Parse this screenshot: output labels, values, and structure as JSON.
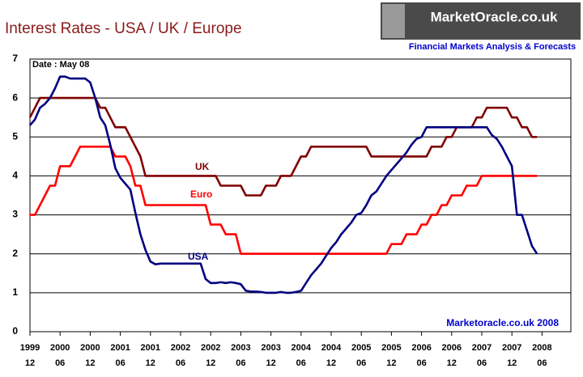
{
  "chart_data": {
    "type": "line",
    "title": "Interest Rates - USA / UK / Europe",
    "logo": {
      "name": "MarketOracle.co.uk",
      "tagline": "Financial Markets Analysis & Forecasts"
    },
    "annotations": {
      "date": "Date : May 08",
      "credit": "Marketoracle.co.uk 2008",
      "uk": "UK",
      "euro": "Euro",
      "usa": "USA"
    },
    "categories": [
      [
        "1999",
        "12"
      ],
      null,
      null,
      null,
      null,
      null,
      [
        "2000",
        "06"
      ],
      null,
      null,
      null,
      null,
      null,
      [
        "2000",
        "12"
      ],
      null,
      null,
      null,
      null,
      null,
      [
        "2001",
        "06"
      ],
      null,
      null,
      null,
      null,
      null,
      [
        "2001",
        "12"
      ],
      null,
      null,
      null,
      null,
      null,
      [
        "2002",
        "06"
      ],
      null,
      null,
      null,
      null,
      null,
      [
        "2002",
        "12"
      ],
      null,
      null,
      null,
      null,
      null,
      [
        "2003",
        "06"
      ],
      null,
      null,
      null,
      null,
      null,
      [
        "2003",
        "12"
      ],
      null,
      null,
      null,
      null,
      null,
      [
        "2004",
        "06"
      ],
      null,
      null,
      null,
      null,
      null,
      [
        "2004",
        "12"
      ],
      null,
      null,
      null,
      null,
      null,
      [
        "2005",
        "06"
      ],
      null,
      null,
      null,
      null,
      null,
      [
        "2005",
        "12"
      ],
      null,
      null,
      null,
      null,
      null,
      [
        "2006",
        "06"
      ],
      null,
      null,
      null,
      null,
      null,
      [
        "2006",
        "12"
      ],
      null,
      null,
      null,
      null,
      null,
      [
        "2007",
        "06"
      ],
      null,
      null,
      null,
      null,
      null,
      [
        "2007",
        "12"
      ],
      null,
      null,
      null,
      null,
      null,
      [
        "2008",
        "06"
      ]
    ],
    "series": [
      {
        "name": "UK",
        "color": "#800000",
        "values": [
          5.5,
          5.75,
          6.0,
          6.0,
          6.0,
          6.0,
          6.0,
          6.0,
          6.0,
          6.0,
          6.0,
          6.0,
          6.0,
          6.0,
          5.75,
          5.75,
          5.5,
          5.25,
          5.25,
          5.25,
          5.0,
          4.75,
          4.5,
          4.0,
          4.0,
          4.0,
          4.0,
          4.0,
          4.0,
          4.0,
          4.0,
          4.0,
          4.0,
          4.0,
          4.0,
          4.0,
          4.0,
          4.0,
          3.75,
          3.75,
          3.75,
          3.75,
          3.75,
          3.5,
          3.5,
          3.5,
          3.5,
          3.75,
          3.75,
          3.75,
          4.0,
          4.0,
          4.0,
          4.25,
          4.5,
          4.5,
          4.75,
          4.75,
          4.75,
          4.75,
          4.75,
          4.75,
          4.75,
          4.75,
          4.75,
          4.75,
          4.75,
          4.75,
          4.5,
          4.5,
          4.5,
          4.5,
          4.5,
          4.5,
          4.5,
          4.5,
          4.5,
          4.5,
          4.5,
          4.5,
          4.75,
          4.75,
          4.75,
          5.0,
          5.0,
          5.25,
          5.25,
          5.25,
          5.25,
          5.5,
          5.5,
          5.75,
          5.75,
          5.75,
          5.75,
          5.75,
          5.5,
          5.5,
          5.25,
          5.25,
          5.0,
          5.0,
          null
        ]
      },
      {
        "name": "Euro",
        "color": "#ff0000",
        "values": [
          3.0,
          3.0,
          3.25,
          3.5,
          3.75,
          3.75,
          4.25,
          4.25,
          4.25,
          4.5,
          4.75,
          4.75,
          4.75,
          4.75,
          4.75,
          4.75,
          4.75,
          4.5,
          4.5,
          4.5,
          4.25,
          3.75,
          3.75,
          3.25,
          3.25,
          3.25,
          3.25,
          3.25,
          3.25,
          3.25,
          3.25,
          3.25,
          3.25,
          3.25,
          3.25,
          3.25,
          2.75,
          2.75,
          2.75,
          2.5,
          2.5,
          2.5,
          2.0,
          2.0,
          2.0,
          2.0,
          2.0,
          2.0,
          2.0,
          2.0,
          2.0,
          2.0,
          2.0,
          2.0,
          2.0,
          2.0,
          2.0,
          2.0,
          2.0,
          2.0,
          2.0,
          2.0,
          2.0,
          2.0,
          2.0,
          2.0,
          2.0,
          2.0,
          2.0,
          2.0,
          2.0,
          2.0,
          2.25,
          2.25,
          2.25,
          2.5,
          2.5,
          2.5,
          2.75,
          2.75,
          3.0,
          3.0,
          3.25,
          3.25,
          3.5,
          3.5,
          3.5,
          3.75,
          3.75,
          3.75,
          4.0,
          4.0,
          4.0,
          4.0,
          4.0,
          4.0,
          4.0,
          4.0,
          4.0,
          4.0,
          4.0,
          4.0,
          null
        ]
      },
      {
        "name": "USA",
        "color": "#000080",
        "values": [
          5.3,
          5.45,
          5.75,
          5.85,
          6.0,
          6.25,
          6.55,
          6.55,
          6.5,
          6.5,
          6.5,
          6.5,
          6.4,
          6.0,
          5.5,
          5.3,
          4.8,
          4.2,
          3.95,
          3.8,
          3.65,
          3.05,
          2.5,
          2.1,
          1.8,
          1.73,
          1.75,
          1.75,
          1.75,
          1.75,
          1.75,
          1.75,
          1.75,
          1.75,
          1.75,
          1.35,
          1.25,
          1.25,
          1.27,
          1.25,
          1.27,
          1.25,
          1.22,
          1.05,
          1.03,
          1.03,
          1.02,
          1.0,
          1.0,
          1.0,
          1.02,
          1.0,
          1.0,
          1.02,
          1.05,
          1.25,
          1.45,
          1.6,
          1.75,
          1.95,
          2.15,
          2.3,
          2.5,
          2.65,
          2.8,
          3.0,
          3.05,
          3.25,
          3.5,
          3.6,
          3.8,
          4.0,
          4.15,
          4.3,
          4.45,
          4.6,
          4.8,
          4.95,
          5.0,
          5.25,
          5.25,
          5.25,
          5.25,
          5.25,
          5.25,
          5.25,
          5.25,
          5.25,
          5.25,
          5.25,
          5.25,
          5.25,
          5.05,
          4.95,
          4.75,
          4.5,
          4.25,
          3.0,
          3.0,
          2.6,
          2.2,
          2.0,
          null
        ]
      }
    ],
    "ylim": [
      0,
      7
    ],
    "yticks": [
      0,
      1,
      2,
      3,
      4,
      5,
      6,
      7
    ],
    "grid": true
  }
}
